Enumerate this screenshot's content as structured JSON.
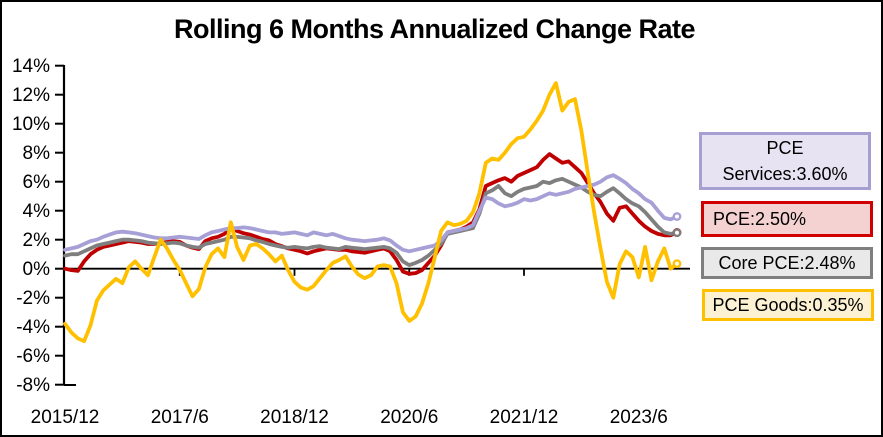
{
  "chart_data": {
    "type": "line",
    "title": "Rolling 6 Months Annualized Change Rate",
    "grid": false,
    "legend_position": "right",
    "x_axis": {
      "start": "2015/12",
      "end": "2023/12",
      "frequency": "monthly",
      "ticks": [
        {
          "month_index": 0,
          "label": "2015/12"
        },
        {
          "month_index": 18,
          "label": "2017/6"
        },
        {
          "month_index": 36,
          "label": "2018/12"
        },
        {
          "month_index": 54,
          "label": "2020/6"
        },
        {
          "month_index": 72,
          "label": "2021/12"
        },
        {
          "month_index": 90,
          "label": "2023/6"
        }
      ]
    },
    "y_axis": {
      "min": -8,
      "max": 14,
      "unit": "%",
      "ticks": [
        {
          "value": 14,
          "label": "14%"
        },
        {
          "value": 12,
          "label": "12%"
        },
        {
          "value": 10,
          "label": "10%"
        },
        {
          "value": 8,
          "label": "8%"
        },
        {
          "value": 6,
          "label": "6%"
        },
        {
          "value": 4,
          "label": "4%"
        },
        {
          "value": 2,
          "label": "2%"
        },
        {
          "value": 0,
          "label": "0%"
        },
        {
          "value": -2,
          "label": "-2%"
        },
        {
          "value": -4,
          "label": "-4%"
        },
        {
          "value": -6,
          "label": "-6%"
        },
        {
          "value": -8,
          "label": "-8%"
        }
      ]
    },
    "series": [
      {
        "id": "pce-services",
        "name": "PCE Services",
        "latest": "3.60%",
        "color": "#a6a0d6",
        "values": [
          1.3,
          1.4,
          1.5,
          1.7,
          1.9,
          2.0,
          2.2,
          2.35,
          2.5,
          2.55,
          2.5,
          2.45,
          2.35,
          2.25,
          2.15,
          2.1,
          2.1,
          2.15,
          2.2,
          2.15,
          2.1,
          2.05,
          2.3,
          2.5,
          2.6,
          2.7,
          2.8,
          2.8,
          2.85,
          2.8,
          2.7,
          2.6,
          2.5,
          2.5,
          2.4,
          2.45,
          2.5,
          2.4,
          2.3,
          2.5,
          2.4,
          2.3,
          2.4,
          2.25,
          2.1,
          2.0,
          1.95,
          1.9,
          1.95,
          2.0,
          2.1,
          1.95,
          1.6,
          1.3,
          1.2,
          1.3,
          1.4,
          1.5,
          1.6,
          1.95,
          2.5,
          2.6,
          2.7,
          2.8,
          3.0,
          4.0,
          4.9,
          4.8,
          4.5,
          4.3,
          4.4,
          4.55,
          4.8,
          4.7,
          4.8,
          5.0,
          5.2,
          5.1,
          5.2,
          5.3,
          5.5,
          5.6,
          5.7,
          5.8,
          6.0,
          6.3,
          6.45,
          6.2,
          5.9,
          5.5,
          5.2,
          4.8,
          4.55,
          4.0,
          3.5,
          3.4,
          3.6
        ]
      },
      {
        "id": "pce",
        "name": "PCE",
        "latest": "2.50%",
        "color": "#c00000",
        "values": [
          0.0,
          -0.1,
          -0.15,
          0.5,
          1.0,
          1.3,
          1.5,
          1.6,
          1.7,
          1.8,
          1.9,
          1.85,
          1.8,
          1.7,
          1.7,
          1.75,
          1.85,
          1.9,
          1.85,
          1.6,
          1.45,
          1.35,
          1.9,
          2.1,
          2.2,
          2.4,
          2.8,
          2.6,
          2.45,
          2.35,
          2.2,
          2.05,
          1.95,
          1.7,
          1.55,
          1.4,
          1.3,
          1.2,
          1.05,
          1.2,
          1.3,
          1.4,
          1.35,
          1.3,
          1.3,
          1.2,
          1.15,
          1.1,
          1.2,
          1.3,
          1.4,
          1.2,
          0.6,
          -0.2,
          -0.35,
          -0.3,
          -0.1,
          0.4,
          0.9,
          1.6,
          2.5,
          2.6,
          2.7,
          2.9,
          3.2,
          4.1,
          5.7,
          5.9,
          6.1,
          6.25,
          6.0,
          6.4,
          6.6,
          6.8,
          7.0,
          7.5,
          7.9,
          7.6,
          7.3,
          7.4,
          7.0,
          6.6,
          5.9,
          5.2,
          4.6,
          3.8,
          3.3,
          4.2,
          4.3,
          3.8,
          3.3,
          2.9,
          2.6,
          2.4,
          2.3,
          2.3,
          2.5
        ]
      },
      {
        "id": "core-pce",
        "name": "Core PCE",
        "latest": "2.48%",
        "color": "#7f7f7f",
        "values": [
          0.9,
          1.0,
          1.0,
          1.2,
          1.4,
          1.6,
          1.7,
          1.8,
          1.9,
          2.0,
          2.0,
          1.95,
          1.9,
          1.8,
          1.75,
          1.7,
          1.75,
          1.8,
          1.75,
          1.6,
          1.5,
          1.45,
          1.7,
          1.8,
          1.9,
          2.0,
          2.2,
          2.2,
          2.15,
          2.1,
          1.95,
          1.85,
          1.7,
          1.6,
          1.5,
          1.45,
          1.5,
          1.45,
          1.4,
          1.5,
          1.55,
          1.45,
          1.4,
          1.35,
          1.5,
          1.45,
          1.4,
          1.35,
          1.4,
          1.45,
          1.5,
          1.4,
          1.1,
          0.5,
          0.25,
          0.4,
          0.6,
          0.9,
          1.3,
          1.7,
          2.4,
          2.5,
          2.6,
          2.7,
          2.8,
          3.8,
          5.2,
          5.4,
          5.7,
          5.2,
          5.0,
          5.3,
          5.5,
          5.6,
          5.7,
          6.0,
          5.9,
          6.1,
          6.2,
          6.0,
          5.8,
          5.6,
          5.3,
          5.1,
          5.0,
          5.3,
          5.55,
          5.2,
          4.8,
          4.5,
          4.3,
          3.9,
          3.4,
          2.9,
          2.5,
          2.4,
          2.48
        ]
      },
      {
        "id": "pce-goods",
        "name": "PCE Goods",
        "latest": "0.35%",
        "color": "#ffc000",
        "values": [
          -3.8,
          -4.4,
          -4.8,
          -5.0,
          -3.9,
          -2.2,
          -1.5,
          -1.1,
          -0.7,
          -1.0,
          0.1,
          0.5,
          0.0,
          -0.45,
          0.8,
          2.0,
          1.4,
          0.6,
          -0.1,
          -1.0,
          -1.9,
          -1.4,
          0.1,
          1.0,
          1.4,
          0.8,
          3.2,
          1.5,
          0.6,
          1.6,
          1.7,
          1.4,
          1.0,
          0.5,
          0.9,
          -0.1,
          -0.9,
          -1.3,
          -1.45,
          -1.2,
          -0.65,
          -0.1,
          0.4,
          0.6,
          0.85,
          0.15,
          -0.4,
          -0.65,
          -0.45,
          0.15,
          0.25,
          0.15,
          -1.0,
          -3.0,
          -3.6,
          -3.3,
          -2.4,
          -1.0,
          0.8,
          2.6,
          3.2,
          3.0,
          3.1,
          3.3,
          3.9,
          5.2,
          7.3,
          7.6,
          7.5,
          8.0,
          8.6,
          9.0,
          9.1,
          9.6,
          10.2,
          10.9,
          12.0,
          12.8,
          10.9,
          11.5,
          11.7,
          9.5,
          6.6,
          3.9,
          1.4,
          -0.9,
          -2.0,
          0.3,
          1.2,
          0.8,
          -0.6,
          1.5,
          -0.8,
          0.5,
          1.4,
          0.0,
          0.35
        ]
      }
    ]
  },
  "legend": {
    "boxes": [
      {
        "id": "pce-services",
        "line1": "PCE",
        "line2": "Services:3.60%",
        "fill": "#e7e3f3",
        "border": "#a6a0d2",
        "align": "center"
      },
      {
        "id": "pce",
        "line1": "PCE:2.50%",
        "line2": "",
        "fill": "#f5d2d2",
        "border": "#d00000",
        "align": "left"
      },
      {
        "id": "core-pce",
        "line1": "Core PCE:2.48%",
        "line2": "",
        "fill": "#e9e9e9",
        "border": "#7f7f7f",
        "align": "center"
      },
      {
        "id": "pce-goods",
        "line1": "PCE Goods:0.35%",
        "line2": "",
        "fill": "#fcf2d3",
        "border": "#ffc000",
        "align": "center"
      }
    ]
  }
}
